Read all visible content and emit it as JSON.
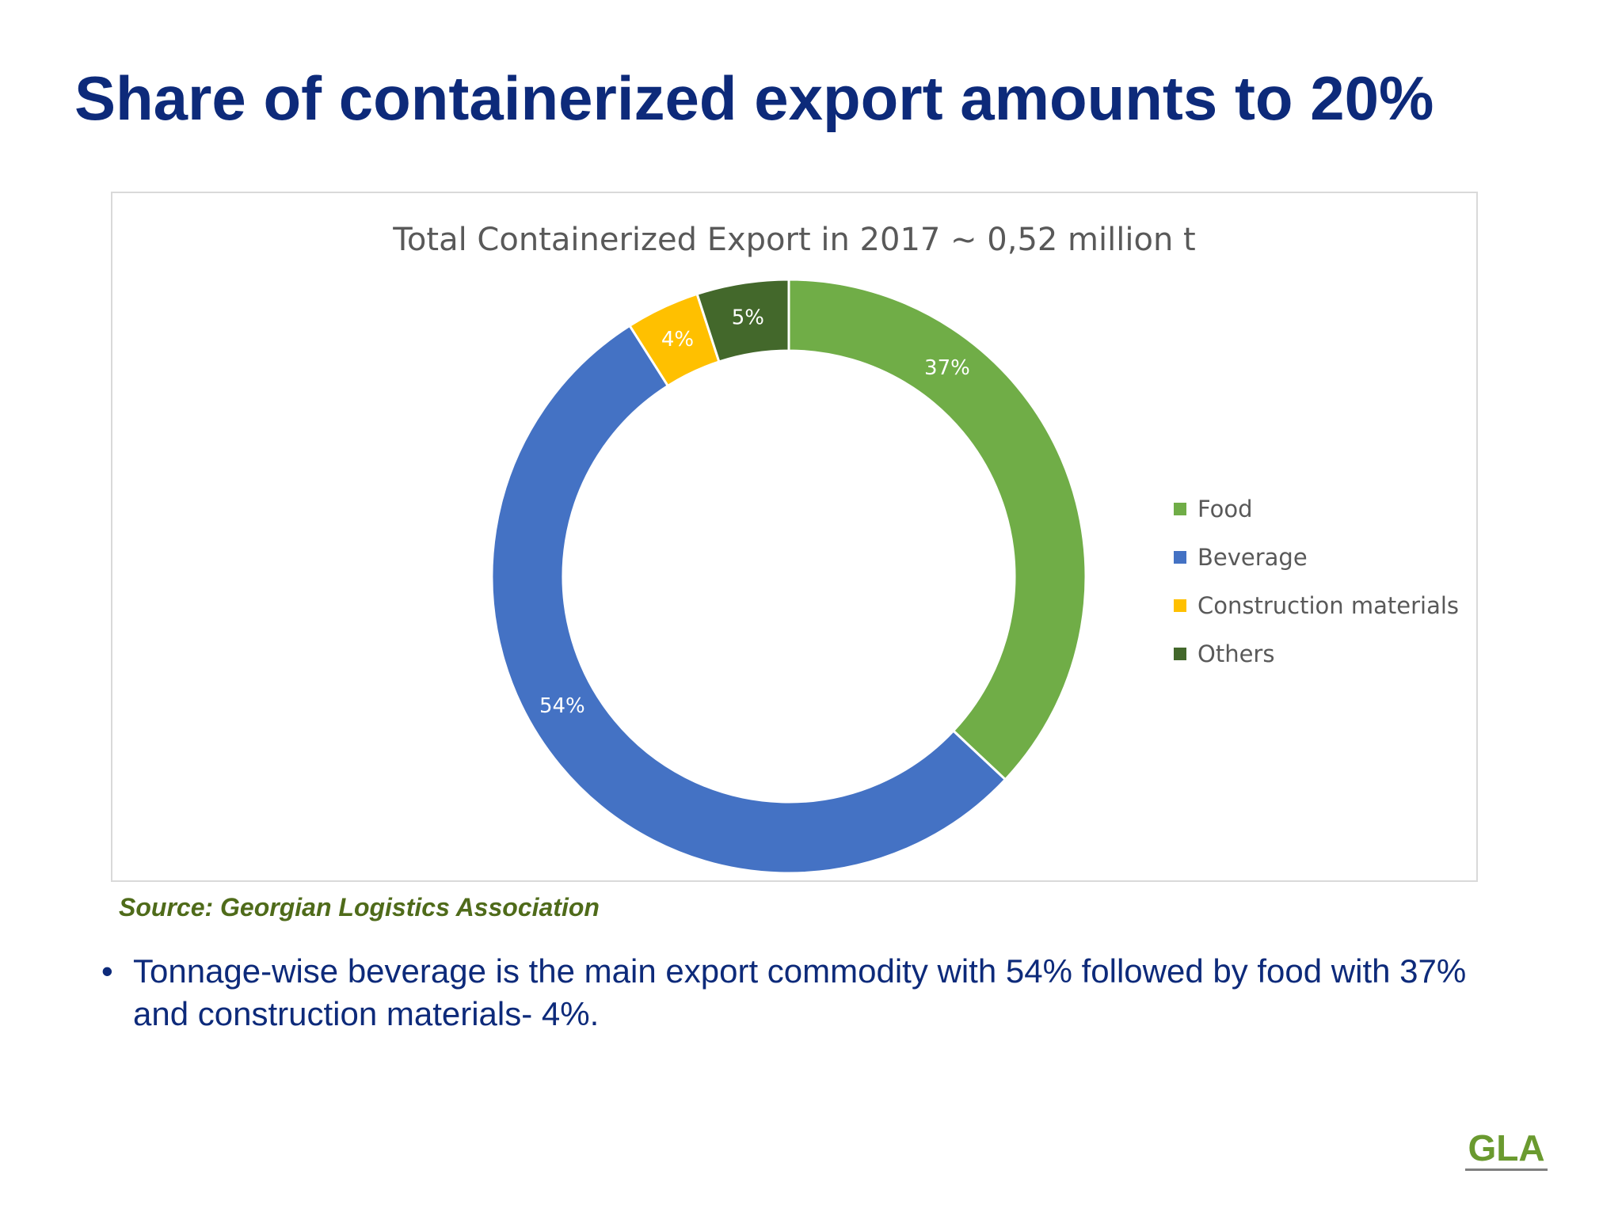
{
  "slide": {
    "title": "Share of containerized export amounts to 20%",
    "source": "Source: Georgian Logistics Association",
    "bullet_marker": "•",
    "bullet_text": "Tonnage-wise beverage is the main export commodity with 54% followed by food with 37% and construction materials- 4%.",
    "logo_text": "GLA"
  },
  "chart_data": {
    "type": "pie",
    "variant": "donut",
    "title": "Total Containerized Export in 2017 ~ 0,52 million t",
    "start_angle_deg": 0,
    "direction": "clockwise",
    "legend_position": "right",
    "slices": [
      {
        "label": "Food",
        "value": 37,
        "display": "37%",
        "color": "#70ad47",
        "label_color": "#ffffff"
      },
      {
        "label": "Beverage",
        "value": 54,
        "display": "54%",
        "color": "#4472c4",
        "label_color": "#ffffff"
      },
      {
        "label": "Construction materials",
        "value": 4,
        "display": "4%",
        "color": "#ffc000",
        "label_color": "#ffffff"
      },
      {
        "label": "Others",
        "value": 5,
        "display": "5%",
        "color": "#43682b",
        "label_color": "#ffffff"
      }
    ]
  }
}
